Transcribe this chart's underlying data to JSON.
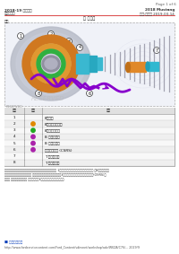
{
  "page_label": "Page 1 of 6",
  "header_left_line1": "2018-19 福特野马",
  "header_left_line2": "自动变速器",
  "header_right_line1": "2018 Mustang",
  "header_right_line2": "总成:变速箱 2019-03-14",
  "title_center": "部 图全景",
  "section_label": "概述",
  "table_headers": [
    "编号",
    "颜色",
    "说明"
  ],
  "table_rows": [
    [
      "1",
      "",
      "B离合器"
    ],
    [
      "2",
      "orange",
      "B离合器钢摩擦片"
    ],
    [
      "3",
      "green",
      "B离合器摩擦片"
    ],
    [
      "4",
      "purple",
      "B 离合器压板"
    ],
    [
      "5",
      "purple",
      "B 离合器活塞"
    ],
    [
      "6",
      "purple",
      "快速回位弹簧 (CSRS)"
    ],
    [
      "7",
      "",
      "T 型油封圈组"
    ],
    [
      "8",
      "",
      "T 型油封圈组"
    ]
  ],
  "dot_colors": {
    "2": "#e08800",
    "3": "#22aa22",
    "4": "#aa22aa",
    "5": "#aa22aa",
    "6": "#aa22aa"
  },
  "footer_lines": [
    "中与右侧的离合器摩擦片可交换方式安装到机身上各安装的顺序。 1号与离合器组合形成离合器包装成套系统。 与B离合器的摩擦",
    "片相比，合理方为方向安装摩擦片 多号与离合器压板安装在变速器上，3号与摩擦片装在一起，摩擦片均表示图(OSRS)的",
    "应用程 每号与离合器摩擦片 多号与钢片，1号和其已上组配合适的离合器."
  ],
  "bottom_link_label": "■ 图示意示意图",
  "url": "http://www.fordservicecontent.com/Ford_Content/vdirsnet/workshop/adv/WKZA/C76/... 2019/9",
  "bg_color": "#ffffff",
  "header_line_color": "#cc0000"
}
